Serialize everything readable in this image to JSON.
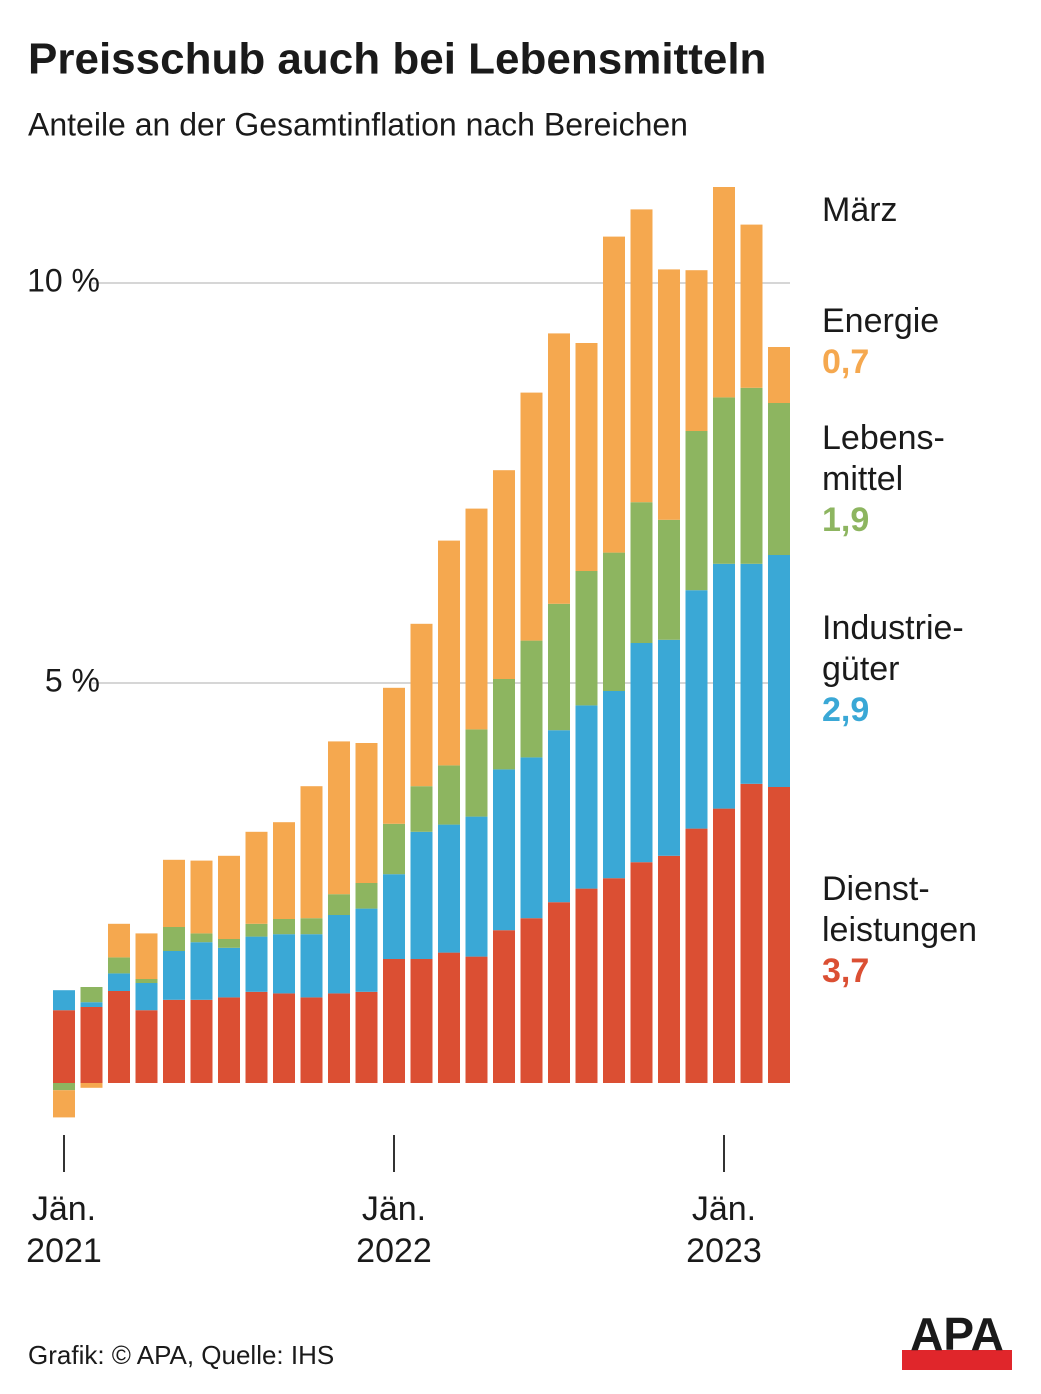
{
  "chart_data": {
    "type": "bar",
    "stacked": true,
    "title": "Preisschub auch bei Lebensmitteln",
    "subtitle": "Anteile an der Gesamtinflation nach Bereichen",
    "legend_heading": "März",
    "source": "Grafik: © APA, Quelle: IHS",
    "logo": "APA",
    "categories": [
      "Jän. 2021",
      null,
      null,
      null,
      null,
      null,
      null,
      null,
      null,
      null,
      null,
      null,
      "Jän. 2022",
      null,
      null,
      null,
      null,
      null,
      null,
      null,
      null,
      null,
      null,
      null,
      "Jän. 2023",
      null,
      null
    ],
    "ylim": [
      -0.5,
      11.5
    ],
    "yticks": [
      {
        "value": 5,
        "label": "5 %"
      },
      {
        "value": 10,
        "label": "10 %"
      }
    ],
    "grid": true,
    "series": [
      {
        "name": "Dienst- leistungen",
        "color": "#db4f33",
        "values": [
          0.91,
          0.95,
          1.15,
          0.91,
          1.04,
          1.04,
          1.07,
          1.14,
          1.12,
          1.07,
          1.12,
          1.14,
          1.55,
          1.55,
          1.63,
          1.58,
          1.91,
          2.06,
          2.26,
          2.43,
          2.56,
          2.76,
          2.84,
          3.18,
          3.43,
          3.74,
          3.7
        ],
        "value_labels": [
          null,
          null,
          null,
          null,
          null,
          null,
          null,
          null,
          null,
          null,
          null,
          null,
          null,
          null,
          null,
          null,
          null,
          null,
          null,
          null,
          null,
          null,
          null,
          null,
          null,
          null,
          "3,7"
        ]
      },
      {
        "name": "Industrie- güter",
        "color": "#3aa8d6",
        "values": [
          0.25,
          0.06,
          0.22,
          0.34,
          0.61,
          0.72,
          0.62,
          0.69,
          0.74,
          0.79,
          0.98,
          1.04,
          1.06,
          1.59,
          1.6,
          1.75,
          2.01,
          2.01,
          2.15,
          2.29,
          2.34,
          2.74,
          2.7,
          2.98,
          3.06,
          2.75,
          2.9
        ],
        "value_labels": [
          null,
          null,
          null,
          null,
          null,
          null,
          null,
          null,
          null,
          null,
          null,
          null,
          null,
          null,
          null,
          null,
          null,
          null,
          null,
          null,
          null,
          null,
          null,
          null,
          null,
          null,
          "2,9"
        ]
      },
      {
        "name": "Lebens- mittel",
        "color": "#8db560",
        "values": [
          -0.09,
          0.19,
          0.2,
          0.05,
          0.3,
          0.11,
          0.11,
          0.16,
          0.19,
          0.2,
          0.26,
          0.32,
          0.63,
          0.57,
          0.74,
          1.09,
          1.13,
          1.46,
          1.58,
          1.68,
          1.73,
          1.76,
          1.5,
          1.99,
          2.08,
          2.2,
          1.9
        ],
        "value_labels": [
          null,
          null,
          null,
          null,
          null,
          null,
          null,
          null,
          null,
          null,
          null,
          null,
          null,
          null,
          null,
          null,
          null,
          null,
          null,
          null,
          null,
          null,
          null,
          null,
          null,
          null,
          "1,9"
        ]
      },
      {
        "name": "Energie",
        "color": "#f5a84f",
        "values": [
          -0.34,
          -0.06,
          0.42,
          0.57,
          0.84,
          0.91,
          1.04,
          1.15,
          1.21,
          1.65,
          1.91,
          1.75,
          1.7,
          2.03,
          2.81,
          2.76,
          2.61,
          3.1,
          3.38,
          2.85,
          3.95,
          3.66,
          3.13,
          2.01,
          2.63,
          2.04,
          0.7
        ],
        "value_labels": [
          null,
          null,
          null,
          null,
          null,
          null,
          null,
          null,
          null,
          null,
          null,
          null,
          null,
          null,
          null,
          null,
          null,
          null,
          null,
          null,
          null,
          null,
          null,
          null,
          null,
          null,
          "0,7"
        ]
      }
    ]
  }
}
